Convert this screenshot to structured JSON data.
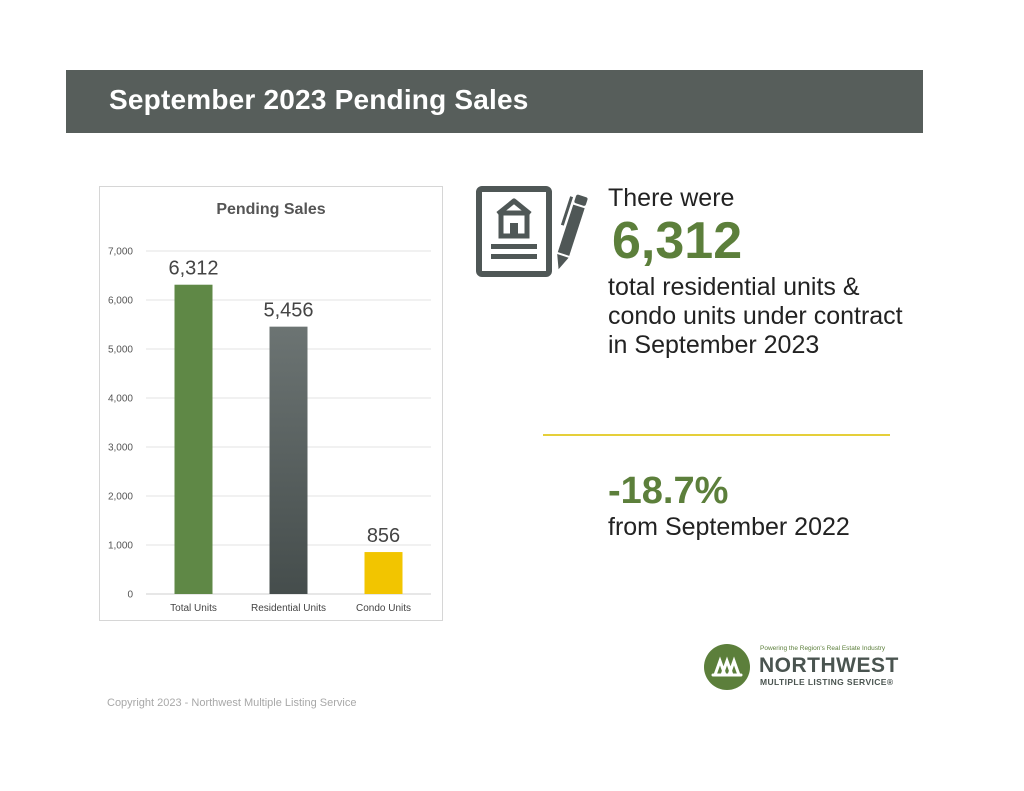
{
  "header": {
    "title": "September 2023 Pending Sales"
  },
  "chart_data": {
    "type": "bar",
    "title": "Pending Sales",
    "categories": [
      "Total Units",
      "Residential Units",
      "Condo Units"
    ],
    "values": [
      6312,
      5456,
      856
    ],
    "value_labels": [
      "6,312",
      "5,456",
      "856"
    ],
    "colors": [
      "#5f8846",
      "#4f5756",
      "#f2c500"
    ],
    "ylim": [
      0,
      7000
    ],
    "yticks": [
      0,
      1000,
      2000,
      3000,
      4000,
      5000,
      6000,
      7000
    ],
    "ytick_labels": [
      "0",
      "1,000",
      "2,000",
      "3,000",
      "4,000",
      "5,000",
      "6,000",
      "7,000"
    ],
    "xlabel": "",
    "ylabel": "",
    "grid": true,
    "legend": "none"
  },
  "stat": {
    "intro": "There were",
    "value": "6,312",
    "description": "total residential units & condo units under contract in September 2023"
  },
  "change": {
    "value": "-18.7%",
    "label": "from September 2022"
  },
  "icons": {
    "contract": "contract-house-pen-icon",
    "logo_mark": "nwmls-logo-mark-icon"
  },
  "logo": {
    "tagline": "Powering the Region's Real Estate Industry",
    "brand": "NORTHWEST",
    "sub": "MULTIPLE LISTING SERVICE®"
  },
  "footer": {
    "copyright": "Copyright 2023 - Northwest Multiple Listing Service"
  }
}
